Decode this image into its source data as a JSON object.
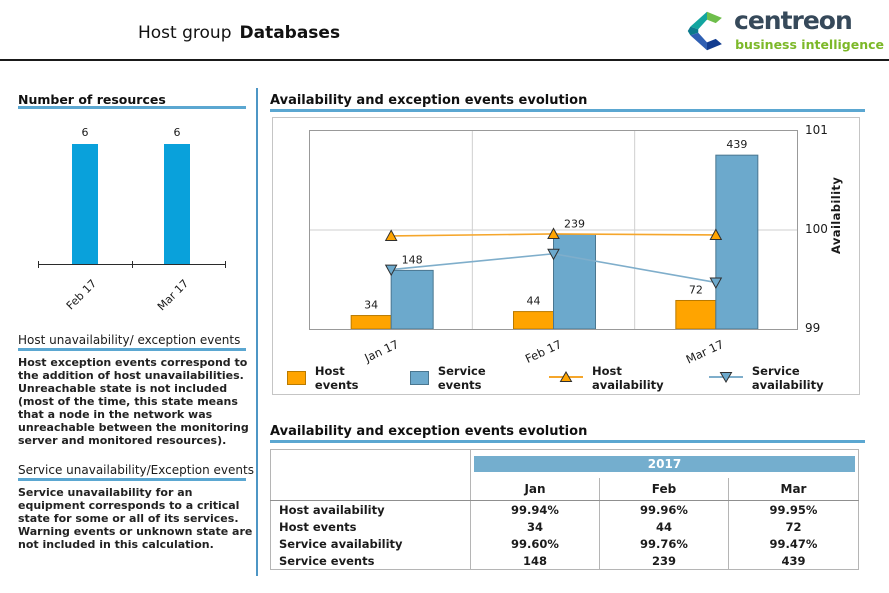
{
  "header": {
    "title_prefix": "Host group",
    "title_emphasis": "Databases",
    "logo": {
      "brand": "centreon",
      "tagline": "business intelligence"
    }
  },
  "sidebar": {
    "sections": [
      {
        "heading": "Host unavailability/ exception events",
        "body": "Host exception events correspond to the addition of host unavailabilities. Unreachable state is not included (most of the time, this state means that a node in the network was unreachable between the monitoring server and monitored resources)."
      },
      {
        "heading": "Service unavailability/Exception events",
        "body": "Service unavailability for an equipment corresponds to a critical state for some or all of its services. Warning events or unknown state are not included in this calculation."
      }
    ]
  },
  "chart_data": [
    {
      "type": "bar",
      "title": "Number of resources",
      "categories": [
        "Feb 17",
        "Mar 17"
      ],
      "values": [
        6,
        6
      ],
      "bar_color": "#09A1DB",
      "ylim": [
        0,
        6
      ],
      "grid": false,
      "value_labels": true
    },
    {
      "type": "combo-bar-line",
      "title": "Availability and exception events evolution",
      "categories": [
        "Jan 17",
        "Feb 17",
        "Mar 17"
      ],
      "bar_series": [
        {
          "name": "Host events",
          "values": [
            34,
            44,
            72
          ],
          "color": "#FFA400",
          "border": "#B97A00"
        },
        {
          "name": "Service events",
          "values": [
            148,
            239,
            439
          ],
          "color": "#6CA9CC",
          "border": "#4A768F"
        }
      ],
      "line_series": [
        {
          "name": "Host availability",
          "values": [
            99.94,
            99.96,
            99.95
          ],
          "color": "#F5A62B",
          "marker": "triangle-up",
          "marker_fill": "#FFA400"
        },
        {
          "name": "Service availability",
          "values": [
            99.6,
            99.76,
            99.47
          ],
          "color": "#7FAECB",
          "marker": "triangle-down",
          "marker_fill": "#6CA9CC"
        }
      ],
      "events_axis": {
        "min": 0,
        "max": 500,
        "visible": false
      },
      "availability_axis": {
        "label": "Availability",
        "ticks": [
          101,
          100,
          99
        ],
        "min": 99,
        "max": 101,
        "position": "right"
      },
      "grid": true,
      "legend_position": "bottom"
    },
    {
      "type": "table",
      "title": "Availability and exception events evolution",
      "year_header": "2017",
      "header_bg": "#74AECE",
      "columns": [
        "Jan",
        "Feb",
        "Mar"
      ],
      "rows": [
        {
          "label": "Host availability",
          "values": [
            "99.94%",
            "99.96%",
            "99.95%"
          ]
        },
        {
          "label": "Host events",
          "values": [
            "34",
            "44",
            "72"
          ]
        },
        {
          "label": "Service availability",
          "values": [
            "99.60%",
            "99.76%",
            "99.47%"
          ]
        },
        {
          "label": "Service events",
          "values": [
            "148",
            "239",
            "439"
          ]
        }
      ]
    }
  ],
  "colors": {
    "accent_underline": "#5BA7D1",
    "column_divider": "#4E96C5",
    "header_rule": "#1a1a1a",
    "logo_brand": "#36495A",
    "logo_tagline": "#7CB828",
    "logo_mark": {
      "green": "#6EBE4B",
      "teal": "#12A5A0",
      "dark_teal": "#0C7A8D",
      "blue": "#2F5FB3",
      "navy": "#123C8F"
    }
  }
}
